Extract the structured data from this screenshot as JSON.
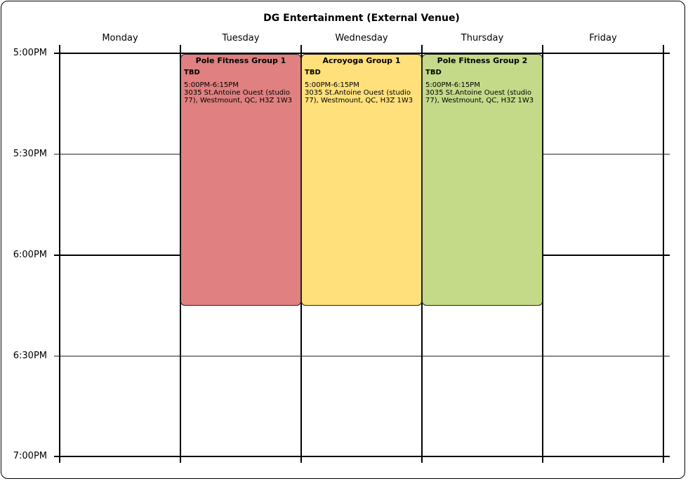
{
  "title": "DG Entertainment (External Venue)",
  "days": [
    "Monday",
    "Tuesday",
    "Wednesday",
    "Thursday",
    "Friday"
  ],
  "times": [
    "5:00PM",
    "5:30PM",
    "6:00PM",
    "6:30PM",
    "7:00PM"
  ],
  "events": [
    {
      "day": "Tuesday",
      "title": "Pole Fitness Group 1",
      "instructor": "TBD",
      "time": "5:00PM-6:15PM",
      "location": "3035 St.Antoine Ouest (studio 77), Westmount, QC, H3Z 1W3",
      "color": "#e08080"
    },
    {
      "day": "Wednesday",
      "title": "Acroyoga Group 1",
      "instructor": "TBD",
      "time": "5:00PM-6:15PM",
      "location": "3035 St.Antoine Ouest (studio 77), Westmount, QC, H3Z 1W3",
      "color": "#ffe07a"
    },
    {
      "day": "Thursday",
      "title": "Pole Fitness Group 2",
      "instructor": "TBD",
      "time": "5:00PM-6:15PM",
      "location": "3035 St.Antoine Ouest (studio 77), Westmount, QC, H3Z 1W3",
      "color": "#c4da88"
    }
  ]
}
